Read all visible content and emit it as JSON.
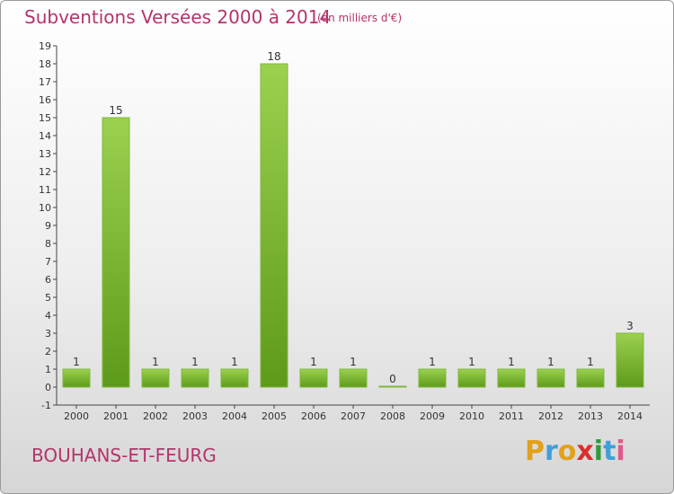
{
  "title": "Subventions Versées 2000 à 2014",
  "unit": "(en milliers d'€)",
  "commune": "BOUHANS-ET-FEURG",
  "brand": {
    "letters": [
      "P",
      "r",
      "o",
      "x",
      "i",
      "t",
      "i"
    ],
    "colors": [
      "#e2a11a",
      "#3f9fd8",
      "#e2a11a",
      "#d6312c",
      "#2f9a3e",
      "#3f9fd8",
      "#e05a8a"
    ]
  },
  "colors": {
    "bar_top": "#9bd14f",
    "bar_bottom": "#5e9a1a",
    "title": "#b5336c",
    "axis": "#444444"
  },
  "chart_data": {
    "type": "bar",
    "title": "Subventions Versées 2000 à 2014",
    "xlabel": "",
    "ylabel": "",
    "categories": [
      "2000",
      "2001",
      "2002",
      "2003",
      "2004",
      "2005",
      "2006",
      "2007",
      "2008",
      "2009",
      "2010",
      "2011",
      "2012",
      "2013",
      "2014"
    ],
    "values": [
      1,
      15,
      1,
      1,
      1,
      18,
      1,
      1,
      0,
      1,
      1,
      1,
      1,
      1,
      3
    ],
    "ylim": [
      -1,
      19
    ],
    "yticks": [
      -1,
      0,
      1,
      2,
      3,
      4,
      5,
      6,
      7,
      8,
      9,
      10,
      11,
      12,
      13,
      14,
      15,
      16,
      17,
      18,
      19
    ],
    "grid": false,
    "legend": "none"
  }
}
